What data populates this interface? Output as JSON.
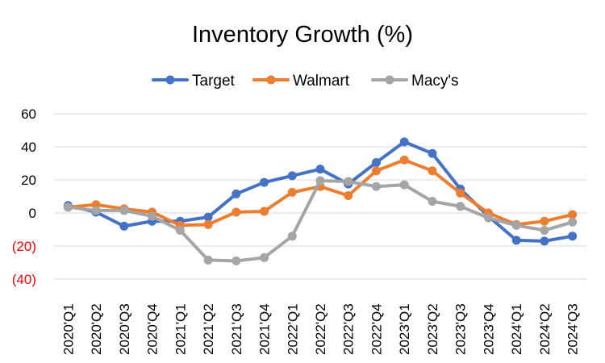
{
  "chart_data": {
    "type": "line",
    "title": "Inventory Growth (%)",
    "xlabel": "",
    "ylabel": "",
    "ylim": [
      -40,
      60
    ],
    "grid": true,
    "legend_position": "top",
    "categories": [
      "2020'Q1",
      "2020'Q2",
      "2020'Q3",
      "2020'Q4",
      "2021'Q1",
      "2021'Q2",
      "2021'Q3",
      "2021'Q4",
      "2022'Q1",
      "2022'Q2",
      "2022'Q3",
      "2022'Q4",
      "2023'Q1",
      "2023'Q2",
      "2023'Q3",
      "2023'Q4",
      "2024'Q1",
      "2024'Q2",
      "2024'Q3"
    ],
    "y_ticks": [
      {
        "value": 60,
        "label": "60",
        "color": "#000000"
      },
      {
        "value": 40,
        "label": "40",
        "color": "#000000"
      },
      {
        "value": 20,
        "label": "20",
        "color": "#000000"
      },
      {
        "value": 0,
        "label": "0",
        "color": "#000000"
      },
      {
        "value": -20,
        "label": "(20)",
        "color": "#ff0000"
      },
      {
        "value": -40,
        "label": "(40)",
        "color": "#ff0000"
      }
    ],
    "series": [
      {
        "name": "Target",
        "color": "#4472c4",
        "values": [
          4.5,
          0.5,
          -8,
          -5,
          -5,
          -2.5,
          11.5,
          18.5,
          22.5,
          26.5,
          17.5,
          30.5,
          43,
          36,
          14.5,
          -2,
          -16.5,
          -17,
          -14
        ]
      },
      {
        "name": "Walmart",
        "color": "#ed7d31",
        "values": [
          3.5,
          5,
          2.5,
          0.5,
          -7.5,
          -7,
          0.5,
          1,
          12.5,
          16,
          10.5,
          25.5,
          32,
          25.5,
          12,
          0,
          -7,
          -5,
          -1
        ]
      },
      {
        "name": "Macy's",
        "color": "#a5a5a5",
        "values": [
          3.5,
          1.5,
          1.5,
          -2,
          -10.5,
          -28.5,
          -29,
          -27,
          -14,
          19.5,
          19,
          16,
          17,
          7,
          4,
          -3,
          -7.5,
          -10.5,
          -5.5
        ]
      }
    ]
  }
}
